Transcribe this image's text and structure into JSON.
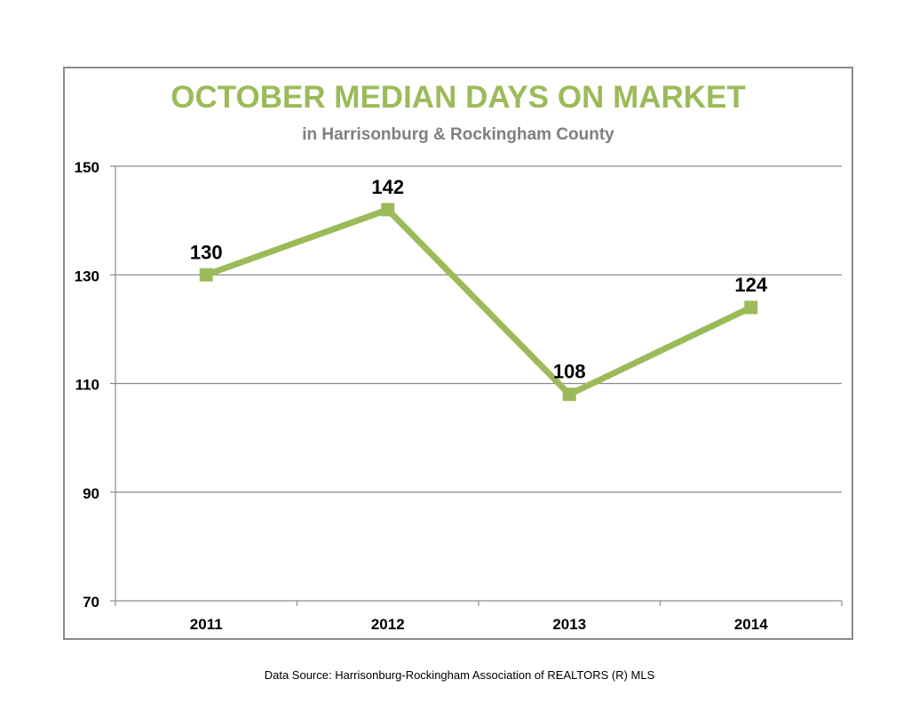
{
  "chart_data": {
    "type": "line",
    "title": "OCTOBER MEDIAN DAYS ON MARKET",
    "subtitle": "in Harrisonburg  & Rockingham County",
    "categories": [
      "2011",
      "2012",
      "2013",
      "2014"
    ],
    "series": [
      {
        "values": [
          130,
          142,
          108,
          124
        ]
      }
    ],
    "data_labels": [
      "130",
      "142",
      "108",
      "124"
    ],
    "ylim": [
      70,
      150
    ],
    "yticks": [
      70,
      90,
      110,
      130,
      150
    ],
    "ytick_labels": [
      "70",
      "90",
      "110",
      "130",
      "150"
    ],
    "grid": true,
    "legend": "none",
    "colors": {
      "series": "#9bbb59",
      "title": "#9bbb59",
      "subtitle": "#7f7f7f",
      "grid": "#8c8c8c"
    }
  },
  "footer": {
    "source": "Data Source: Harrisonburg-Rockingham Association of REALTORS (R) MLS"
  }
}
